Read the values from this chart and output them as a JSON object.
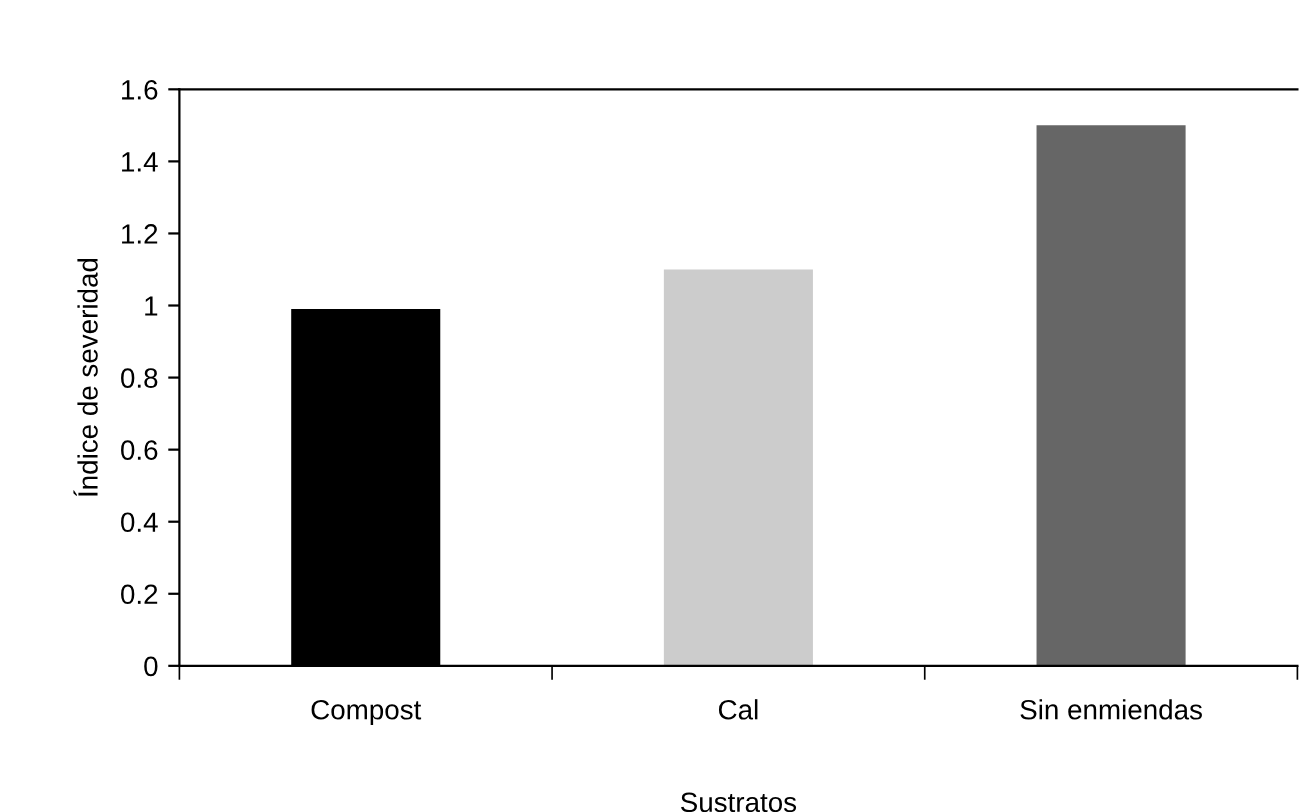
{
  "chart_data": {
    "type": "bar",
    "xlabel": "Sustratos",
    "ylabel": "Índice de severidad",
    "categories": [
      "Compost",
      "Cal",
      "Sin enmiendas"
    ],
    "values": [
      0.99,
      1.1,
      1.5
    ],
    "colors": [
      "#000000",
      "#cccccc",
      "#666666"
    ],
    "ylim": [
      0,
      1.6
    ],
    "yticks": [
      0,
      0.2,
      0.4,
      0.6,
      0.8,
      1,
      1.2,
      1.4,
      1.6
    ],
    "grid": false
  }
}
